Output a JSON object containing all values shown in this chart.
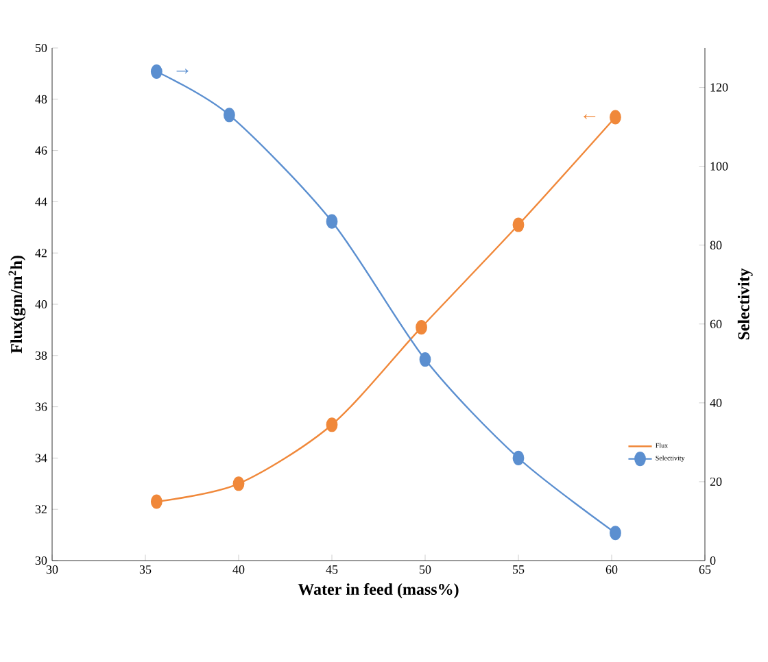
{
  "chart_data": {
    "type": "line",
    "xlabel": "Water in feed (mass%)",
    "ylabel": "Flux(gm/m$^{2}$h)",
    "y2label": "Selectivity",
    "series": [
      {
        "name": "Flux",
        "color": "#f0883a",
        "x": [
          35.6,
          40,
          45,
          49.8,
          55,
          60.2
        ],
        "values": [
          32.3,
          33.0,
          35.3,
          39.1,
          43.1,
          47.3
        ]
      },
      {
        "name": "Selectivity",
        "color": "#5b8fd0",
        "axis": "y2",
        "x": [
          35.6,
          39.5,
          45,
          50,
          55,
          60.2
        ],
        "values": [
          124,
          113,
          86,
          51,
          26,
          7
        ]
      }
    ],
    "xlim": [
      30,
      65
    ],
    "xticks": [
      30,
      35,
      40,
      45,
      50,
      55,
      60,
      65
    ],
    "ylim": [
      30,
      50
    ],
    "yticks": [
      30,
      32,
      34,
      36,
      38,
      40,
      42,
      44,
      46,
      48,
      50
    ],
    "y2lim": [
      0,
      130
    ],
    "y2ticks": [
      0,
      20,
      40,
      60,
      80,
      100,
      120
    ],
    "annotations": [
      "→",
      "←"
    ],
    "legend": "bottom right",
    "marker": "circle",
    "line_style": "solid",
    "grid": false
  }
}
